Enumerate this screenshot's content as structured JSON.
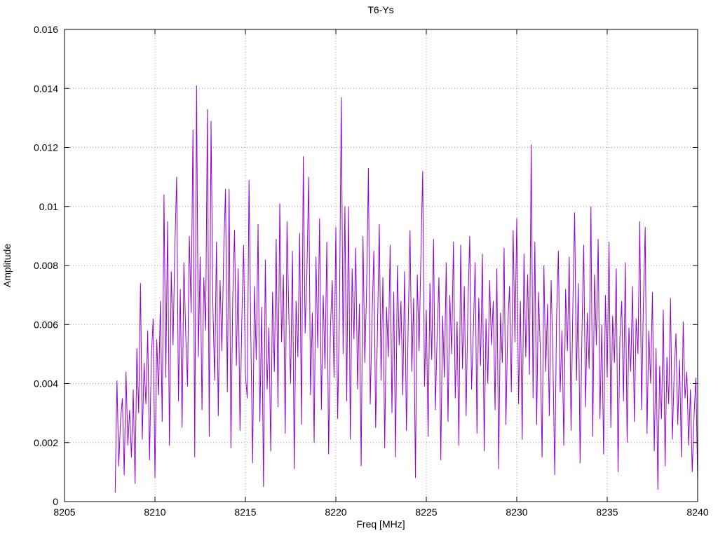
{
  "chart_data": {
    "type": "line",
    "title": "T6-Ys",
    "xlabel": "Freq [MHz]",
    "ylabel": "Amplitude",
    "xlim": [
      8205,
      8240
    ],
    "ylim": [
      0,
      0.016
    ],
    "x_ticks": [
      8205,
      8210,
      8215,
      8220,
      8225,
      8230,
      8235,
      8240
    ],
    "x_tick_labels": [
      "8205",
      "8210",
      "8215",
      "8220",
      "8225",
      "8230",
      "8235",
      "8240"
    ],
    "y_ticks": [
      0,
      0.002,
      0.004,
      0.006,
      0.008,
      0.01,
      0.012,
      0.014,
      0.016
    ],
    "y_tick_labels": [
      "0",
      "0.002",
      "0.004",
      "0.006",
      "0.008",
      "0.01",
      "0.012",
      "0.014",
      "0.016"
    ],
    "grid": "dotted",
    "legend": "none",
    "line_color": "#9400d3",
    "x_start": 8207.8,
    "x_step": 0.1,
    "values": [
      0.0003,
      0.0041,
      0.0012,
      0.0028,
      0.0035,
      0.0009,
      0.0044,
      0.0019,
      0.0031,
      0.0015,
      0.0038,
      0.0006,
      0.0052,
      0.003,
      0.0074,
      0.0021,
      0.0047,
      0.0033,
      0.0058,
      0.0014,
      0.0049,
      0.0062,
      0.0008,
      0.0055,
      0.0036,
      0.0068,
      0.0027,
      0.0104,
      0.0042,
      0.0095,
      0.0019,
      0.0078,
      0.0053,
      0.0086,
      0.011,
      0.0034,
      0.0072,
      0.0025,
      0.0081,
      0.0057,
      0.0039,
      0.009,
      0.0064,
      0.0126,
      0.0015,
      0.0141,
      0.0049,
      0.0083,
      0.0031,
      0.0076,
      0.0058,
      0.0133,
      0.0022,
      0.0129,
      0.0067,
      0.0041,
      0.0088,
      0.0029,
      0.0075,
      0.0051,
      0.0084,
      0.0106,
      0.0037,
      0.0106,
      0.0018,
      0.0069,
      0.0092,
      0.0046,
      0.0079,
      0.0024,
      0.0061,
      0.0087,
      0.0043,
      0.0035,
      0.0109,
      0.0056,
      0.0013,
      0.0073,
      0.0048,
      0.0094,
      0.0027,
      0.0066,
      0.0005,
      0.0082,
      0.0038,
      0.0059,
      0.0017,
      0.0071,
      0.0044,
      0.0089,
      0.0032,
      0.0101,
      0.0054,
      0.0077,
      0.0023,
      0.0095,
      0.0063,
      0.004,
      0.0085,
      0.0011,
      0.0068,
      0.0049,
      0.0091,
      0.0026,
      0.0117,
      0.0057,
      0.0078,
      0.011,
      0.0036,
      0.0064,
      0.002,
      0.0083,
      0.0052,
      0.0096,
      0.0031,
      0.007,
      0.0045,
      0.0088,
      0.0016,
      0.0059,
      0.0075,
      0.0042,
      0.0093,
      0.0028,
      0.0065,
      0.0137,
      0.005,
      0.01,
      0.0034,
      0.01,
      0.0021,
      0.0079,
      0.0055,
      0.0086,
      0.0038,
      0.0067,
      0.0012,
      0.009,
      0.0047,
      0.0072,
      0.0113,
      0.0033,
      0.0062,
      0.0085,
      0.0025,
      0.0058,
      0.0094,
      0.0041,
      0.0076,
      0.0018,
      0.0066,
      0.0049,
      0.0087,
      0.003,
      0.0071,
      0.0015,
      0.008,
      0.0053,
      0.0068,
      0.0036,
      0.0078,
      0.0024,
      0.006,
      0.0092,
      0.0044,
      0.0069,
      0.0008,
      0.0077,
      0.0051,
      0.0083,
      0.0112,
      0.0039,
      0.0065,
      0.0022,
      0.0074,
      0.0048,
      0.0089,
      0.0031,
      0.0057,
      0.0076,
      0.0014,
      0.0063,
      0.0042,
      0.0081,
      0.0027,
      0.007,
      0.005,
      0.0088,
      0.0035,
      0.0061,
      0.0019,
      0.0087,
      0.0045,
      0.0073,
      0.0029,
      0.0066,
      0.009,
      0.0038,
      0.0058,
      0.0081,
      0.0023,
      0.0069,
      0.0046,
      0.0084,
      0.0017,
      0.0062,
      0.004,
      0.0075,
      0.0053,
      0.0068,
      0.0031,
      0.0079,
      0.0011,
      0.0064,
      0.0047,
      0.0086,
      0.0026,
      0.0059,
      0.0073,
      0.0037,
      0.0092,
      0.0054,
      0.0096,
      0.0033,
      0.0068,
      0.0021,
      0.0084,
      0.0049,
      0.0077,
      0.0043,
      0.0121,
      0.0035,
      0.0088,
      0.0026,
      0.0071,
      0.0052,
      0.0015,
      0.008,
      0.0044,
      0.0067,
      0.0029,
      0.0075,
      0.0048,
      0.0009,
      0.0062,
      0.0085,
      0.0037,
      0.0058,
      0.0019,
      0.0072,
      0.0051,
      0.0083,
      0.0024,
      0.0066,
      0.0098,
      0.0041,
      0.0074,
      0.0013,
      0.0056,
      0.0087,
      0.0032,
      0.0064,
      0.0045,
      0.01,
      0.0022,
      0.0077,
      0.0053,
      0.0089,
      0.0028,
      0.006,
      0.0016,
      0.007,
      0.0042,
      0.0088,
      0.0025,
      0.0063,
      0.0047,
      0.0079,
      0.001,
      0.0055,
      0.0068,
      0.0034,
      0.0081,
      0.002,
      0.0059,
      0.0044,
      0.0073,
      0.0027,
      0.0062,
      0.005,
      0.0095,
      0.0031,
      0.0067,
      0.0093,
      0.0023,
      0.0058,
      0.004,
      0.0071,
      0.0017,
      0.0052,
      0.0004,
      0.0046,
      0.0028,
      0.0065,
      0.0012,
      0.0049,
      0.0033,
      0.0069,
      0.0021,
      0.0043,
      0.0057,
      0.0026,
      0.0048,
      0.0015,
      0.0061,
      0.0035,
      0.0044,
      0.0019,
      0.0038,
      0.001,
      0.0029,
      0.0042,
      0.0007
    ]
  }
}
